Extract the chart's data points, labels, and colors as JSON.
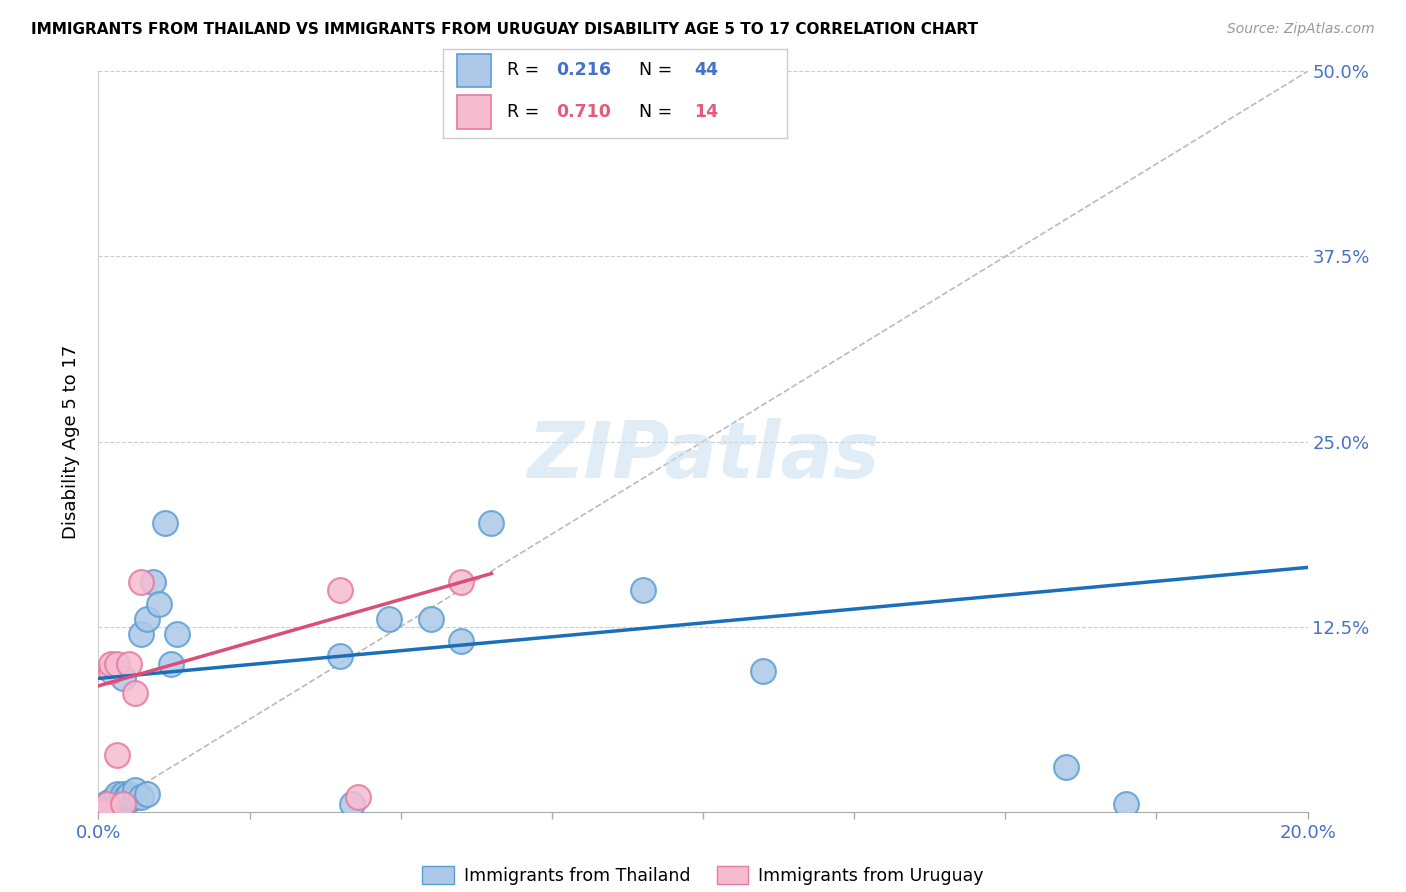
{
  "title": "IMMIGRANTS FROM THAILAND VS IMMIGRANTS FROM URUGUAY DISABILITY AGE 5 TO 17 CORRELATION CHART",
  "source": "Source: ZipAtlas.com",
  "ylabel": "Disability Age 5 to 17",
  "xlim": [
    0.0,
    0.2
  ],
  "ylim": [
    0.0,
    0.5
  ],
  "xticks": [
    0.0,
    0.025,
    0.05,
    0.075,
    0.1,
    0.125,
    0.15,
    0.175,
    0.2
  ],
  "xtick_labels": [
    "0.0%",
    "",
    "",
    "",
    "",
    "",
    "",
    "",
    "20.0%"
  ],
  "yticks": [
    0.0,
    0.125,
    0.25,
    0.375,
    0.5
  ],
  "ytick_labels": [
    "",
    "12.5%",
    "25.0%",
    "37.5%",
    "50.0%"
  ],
  "thailand_color": "#adc8e8",
  "thailand_edge_color": "#5a9fd4",
  "uruguay_color": "#f5bcd0",
  "uruguay_edge_color": "#e8799f",
  "thailand_line_color": "#1a6fba",
  "uruguay_line_color": "#d94f78",
  "diagonal_line_color": "#bbbbbb",
  "watermark": "ZIPatlas",
  "thailand_x": [
    0.0008,
    0.001,
    0.0012,
    0.0013,
    0.0015,
    0.0018,
    0.002,
    0.002,
    0.0022,
    0.0025,
    0.003,
    0.003,
    0.003,
    0.003,
    0.0035,
    0.004,
    0.004,
    0.004,
    0.004,
    0.0045,
    0.005,
    0.005,
    0.005,
    0.006,
    0.006,
    0.007,
    0.007,
    0.008,
    0.008,
    0.009,
    0.01,
    0.011,
    0.012,
    0.013,
    0.04,
    0.042,
    0.048,
    0.055,
    0.06,
    0.065,
    0.09,
    0.11,
    0.16,
    0.17
  ],
  "thailand_y": [
    0.0,
    0.0,
    0.003,
    0.005,
    0.006,
    0.003,
    0.005,
    0.007,
    0.008,
    0.006,
    0.005,
    0.008,
    0.01,
    0.012,
    0.008,
    0.007,
    0.01,
    0.012,
    0.09,
    0.01,
    0.008,
    0.01,
    0.012,
    0.01,
    0.015,
    0.01,
    0.12,
    0.13,
    0.012,
    0.155,
    0.14,
    0.195,
    0.1,
    0.12,
    0.105,
    0.005,
    0.13,
    0.13,
    0.115,
    0.195,
    0.15,
    0.095,
    0.03,
    0.005
  ],
  "uruguay_x": [
    0.0005,
    0.001,
    0.0015,
    0.002,
    0.002,
    0.003,
    0.003,
    0.004,
    0.005,
    0.006,
    0.007,
    0.04,
    0.043,
    0.06
  ],
  "uruguay_y": [
    0.0,
    0.0,
    0.005,
    0.095,
    0.1,
    0.1,
    0.038,
    0.005,
    0.1,
    0.08,
    0.155,
    0.15,
    0.01,
    0.155
  ],
  "legend_R_thailand": "0.216",
  "legend_N_thailand": "44",
  "legend_R_uruguay": "0.710",
  "legend_N_uruguay": "14",
  "thailand_R_color": "#4472c4",
  "uruguay_R_color": "#e05c7a"
}
